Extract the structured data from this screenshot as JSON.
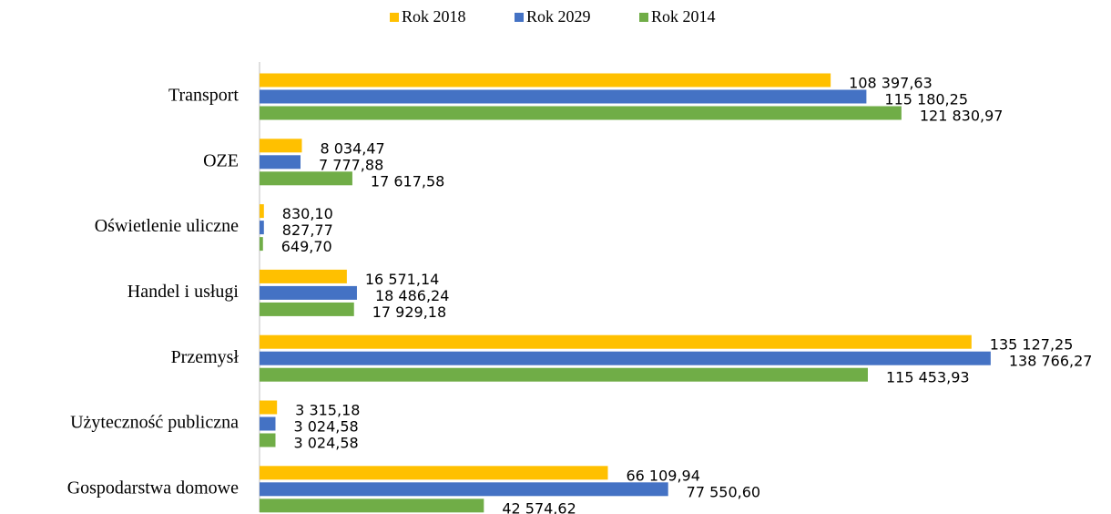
{
  "chart_data": {
    "type": "hbar",
    "categories": [
      "Transport",
      "OZE",
      "Oświetlenie uliczne",
      "Handel i usługi",
      "Przemysł",
      "Użyteczność publiczna",
      "Gospodarstwa domowe"
    ],
    "series": [
      {
        "name": "Rok 2018",
        "color": "#FFC000",
        "values": [
          108397.63,
          8034.47,
          830.1,
          16571.14,
          135127.25,
          3315.18,
          66109.94
        ],
        "value_labels": [
          "108 397,63",
          "8 034,47",
          "830,10",
          "16 571,14",
          "135 127,25",
          "3 315,18",
          "66 109,94"
        ]
      },
      {
        "name": "Rok 2029",
        "color": "#4472C4",
        "values": [
          115180.25,
          7777.88,
          827.77,
          18486.24,
          138766.27,
          3024.58,
          77550.6
        ],
        "value_labels": [
          "115 180,25",
          "7 777,88",
          "827,77",
          "18 486,24",
          "138 766,27",
          "3 024,58",
          "77 550,60"
        ]
      },
      {
        "name": "Rok 2014",
        "color": "#70AD47",
        "values": [
          121830.97,
          17617.58,
          649.7,
          17929.18,
          115453.93,
          3024.58,
          42574.62
        ],
        "value_labels": [
          "121 830,97",
          "17 617,58",
          "649,70",
          "17 929,18",
          "115 453,93",
          "3 024,58",
          "42 574,62"
        ]
      }
    ],
    "xlim": [
      0,
      140000
    ],
    "legend": "top"
  }
}
